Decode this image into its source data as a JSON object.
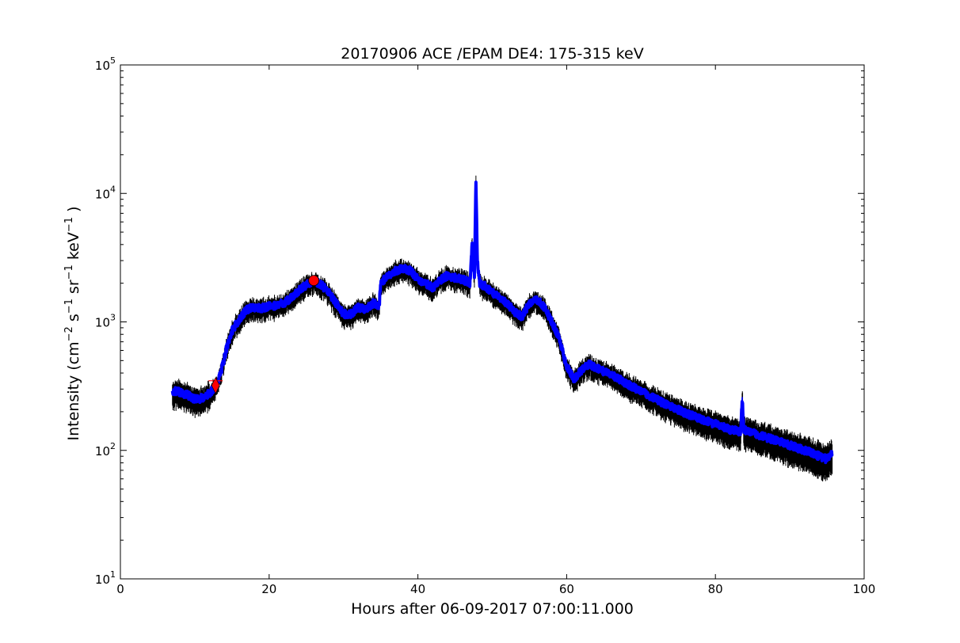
{
  "chart_data": {
    "type": "line",
    "title": "20170906 ACE /EPAM DE4: 175-315 keV",
    "xlabel": "Hours after 06-09-2017 07:00:11.000",
    "ylabel": {
      "prefix": "Intensity (cm",
      "parts": [
        {
          "base": "",
          "exp": "−2"
        },
        {
          "base": " s",
          "exp": "−1"
        },
        {
          "base": " sr",
          "exp": "−1"
        },
        {
          "base": " keV",
          "exp": "−1"
        }
      ],
      "suffix": " )"
    },
    "xlim": [
      0,
      100
    ],
    "ylim": [
      10,
      100000
    ],
    "yscale": "log",
    "grid": false,
    "x_ticks": [
      {
        "value": 0,
        "label": "0"
      },
      {
        "value": 20,
        "label": "20"
      },
      {
        "value": 40,
        "label": "40"
      },
      {
        "value": 60,
        "label": "60"
      },
      {
        "value": 80,
        "label": "80"
      },
      {
        "value": 100,
        "label": "100"
      }
    ],
    "y_ticks": [
      {
        "value": 10,
        "base": "10",
        "exp": "1"
      },
      {
        "value": 100,
        "base": "10",
        "exp": "2"
      },
      {
        "value": 1000,
        "base": "10",
        "exp": "3"
      },
      {
        "value": 10000,
        "base": "10",
        "exp": "4"
      },
      {
        "value": 100000,
        "base": "10",
        "exp": "5"
      }
    ],
    "colors": {
      "line": "#0000ff",
      "error_band": "#000000",
      "marker": "#ff0000"
    },
    "series": [
      {
        "x": [
          7.0,
          8.0,
          9.0,
          10.0,
          11.0,
          12.0,
          12.8,
          13.5,
          14.2,
          15.0,
          16.0,
          17.0,
          18.0,
          19.0,
          20.0,
          21.0,
          22.0,
          23.0,
          24.0,
          25.0,
          26.0,
          27.0,
          28.0,
          29.0,
          30.0,
          31.0,
          32.0,
          33.0,
          34.0,
          34.8,
          35.0,
          36.0,
          37.0,
          38.0,
          39.0,
          40.0,
          41.0,
          42.0,
          43.0,
          44.0,
          45.0,
          46.0,
          47.0,
          47.3,
          47.6,
          47.8,
          48.0,
          48.3,
          49.0,
          50.0,
          51.0,
          52.0,
          53.0,
          54.0,
          55.0,
          56.0,
          57.0,
          58.0,
          59.0,
          60.0,
          61.0,
          62.0,
          63.0,
          64.0,
          65.0,
          66.0,
          67.0,
          68.0,
          69.0,
          70.0,
          72.0,
          74.0,
          76.0,
          78.0,
          80.0,
          82.0,
          83.4,
          83.6,
          83.8,
          86.0,
          88.0,
          90.0,
          92.0,
          94.0,
          95.0,
          95.7
        ],
        "y": [
          290,
          285,
          270,
          250,
          255,
          280,
          310,
          400,
          600,
          850,
          1050,
          1250,
          1300,
          1280,
          1320,
          1350,
          1400,
          1550,
          1750,
          1950,
          2100,
          1950,
          1700,
          1400,
          1150,
          1150,
          1300,
          1250,
          1400,
          1350,
          2000,
          2300,
          2500,
          2600,
          2500,
          2150,
          2000,
          1850,
          2100,
          2300,
          2200,
          2150,
          2000,
          4000,
          2300,
          12000,
          3000,
          2000,
          1900,
          1700,
          1550,
          1400,
          1200,
          1100,
          1400,
          1500,
          1300,
          1000,
          750,
          450,
          360,
          420,
          470,
          440,
          410,
          390,
          360,
          330,
          310,
          290,
          250,
          220,
          195,
          175,
          160,
          145,
          140,
          260,
          145,
          130,
          120,
          110,
          100,
          90,
          85,
          95
        ]
      }
    ],
    "markers": [
      {
        "shape": "diamond",
        "x": 12.8,
        "y": 320
      },
      {
        "shape": "circle",
        "x": 26.0,
        "y": 2100
      }
    ]
  }
}
